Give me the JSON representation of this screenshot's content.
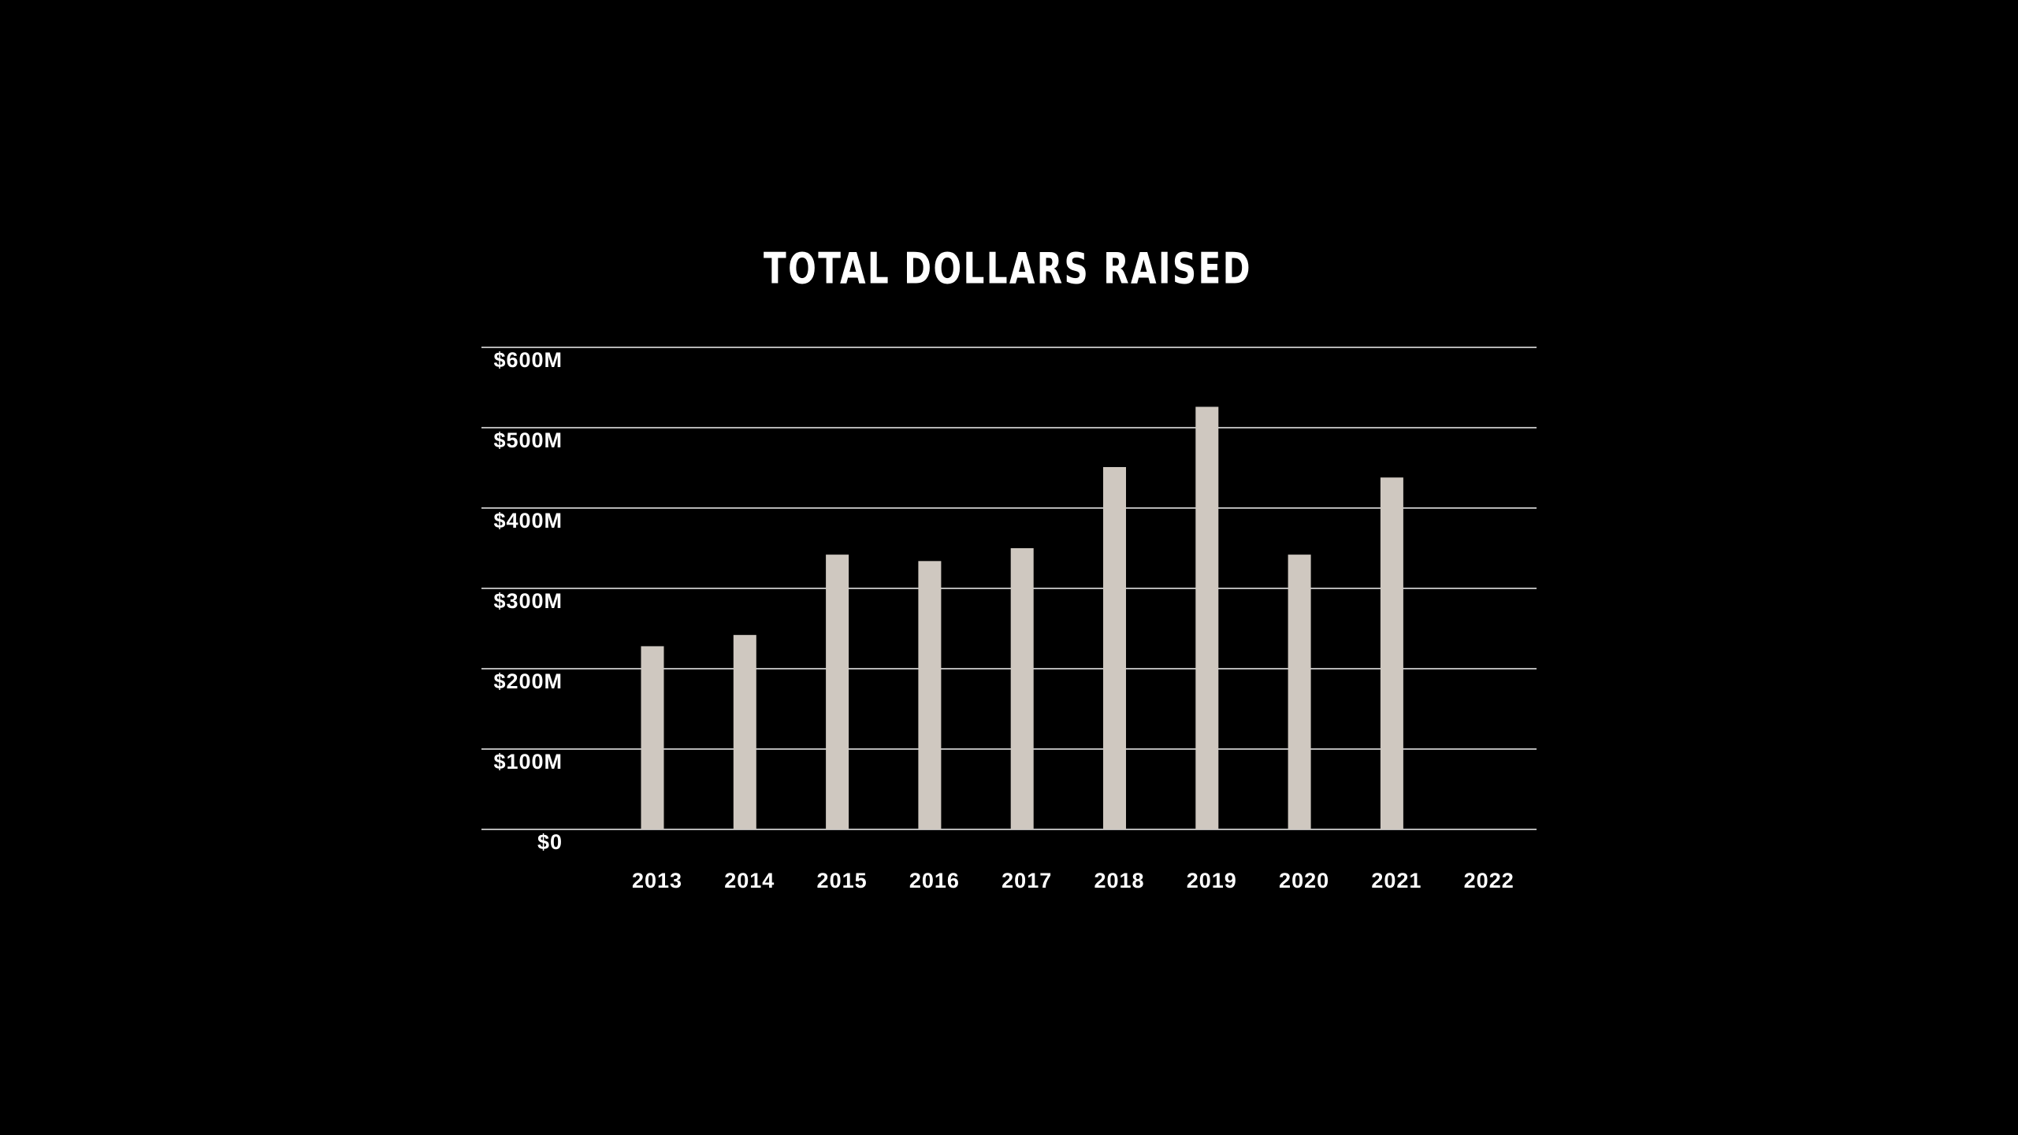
{
  "chart_data": {
    "type": "bar",
    "title": "TOTAL DOLLARS RAISED",
    "categories": [
      "2013",
      "2014",
      "2015",
      "2016",
      "2017",
      "2018",
      "2019",
      "2020",
      "2021",
      "2022"
    ],
    "values": [
      228,
      242,
      342,
      334,
      350,
      451,
      526,
      342,
      438,
      null
    ],
    "color": "#cfc8c0",
    "ylim": [
      0,
      600
    ],
    "yticks": [
      {
        "value": 0,
        "label": "$0"
      },
      {
        "value": 100,
        "label": "$100M"
      },
      {
        "value": 200,
        "label": "$200M"
      },
      {
        "value": 300,
        "label": "$300M"
      },
      {
        "value": 400,
        "label": "$400M"
      },
      {
        "value": 500,
        "label": "$500M"
      },
      {
        "value": 600,
        "label": "$600M"
      }
    ],
    "grid": true
  }
}
